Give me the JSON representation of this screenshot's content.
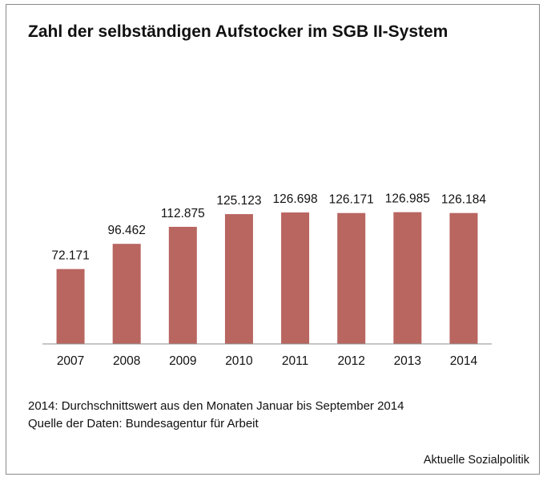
{
  "chart_data": {
    "type": "bar",
    "title": "Zahl der selbständigen Aufstocker im SGB II-System",
    "categories": [
      "2007",
      "2008",
      "2009",
      "2010",
      "2011",
      "2012",
      "2013",
      "2014"
    ],
    "values": [
      72171,
      96462,
      112875,
      125123,
      126698,
      126171,
      126985,
      126184
    ],
    "value_labels": [
      "72.171",
      "96.462",
      "112.875",
      "125.123",
      "126.698",
      "126.171",
      "126.985",
      "126.184"
    ],
    "xlabel": "",
    "ylabel": "",
    "ylim": [
      0,
      140000
    ],
    "grid": false,
    "bar_color": "#b96560"
  },
  "notes": {
    "line1": "2014: Durchschnittswert aus den Monaten Januar bis September 2014",
    "line2": "Quelle der Daten: Bundesagentur für Arbeit"
  },
  "source_label": "Aktuelle Sozialpolitik"
}
